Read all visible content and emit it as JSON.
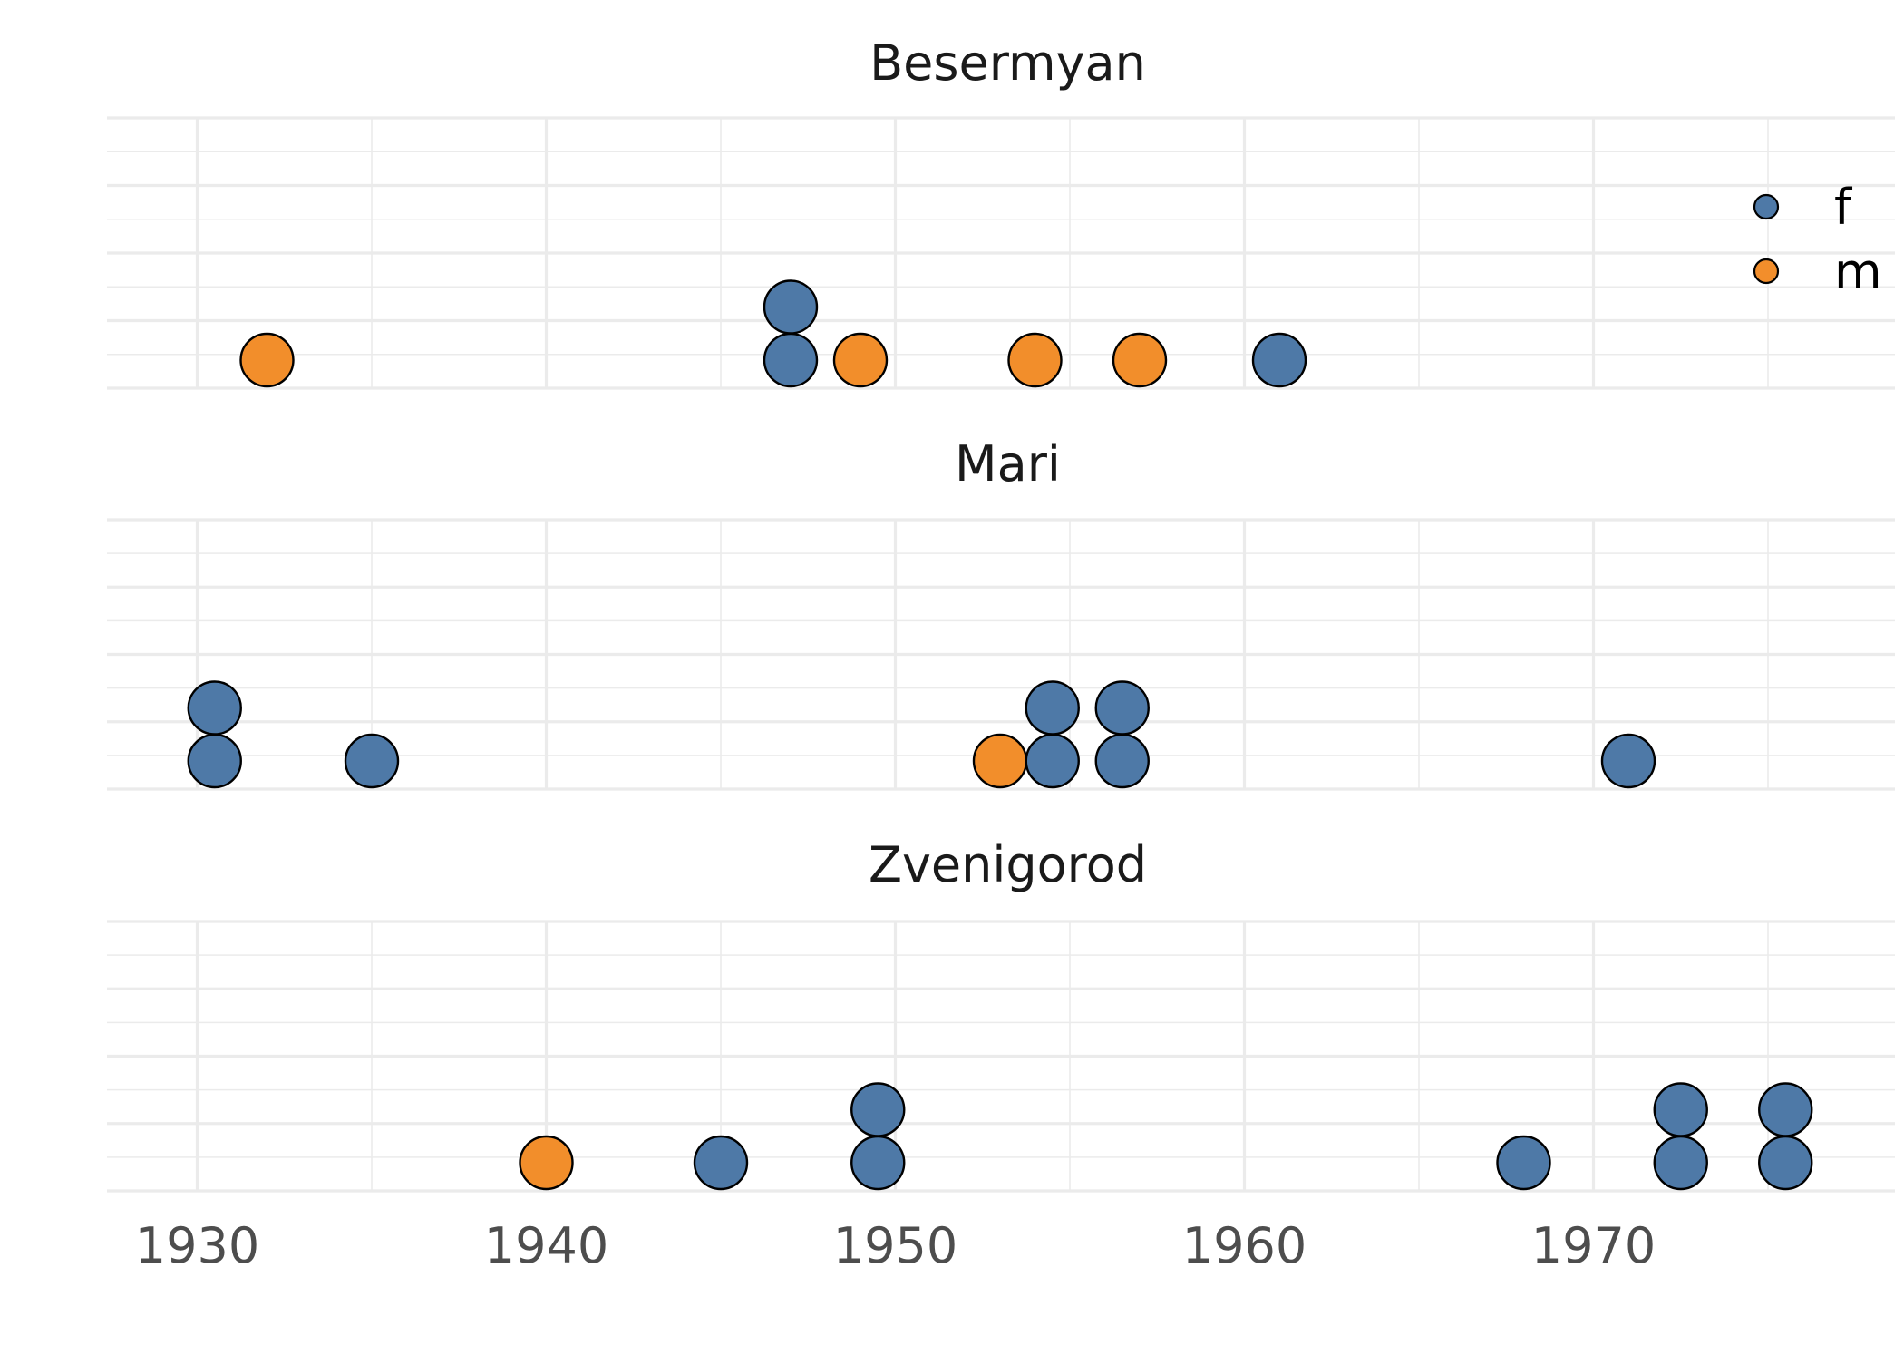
{
  "chart_data": {
    "type": "scatter",
    "subtype": "dotplot",
    "xlabel": "",
    "ylabel": "",
    "xlim": [
      1927.5,
      1978.5
    ],
    "x_ticks": [
      1930,
      1940,
      1950,
      1960,
      1970
    ],
    "x_tick_labels": [
      "1930",
      "1940",
      "1950",
      "1960",
      "1970"
    ],
    "grid": true,
    "legend_position": "right, top",
    "legend": [
      {
        "key": "f",
        "label": "f",
        "color": "#4e79a7"
      },
      {
        "key": "m",
        "label": "m",
        "color": "#f28e2b"
      }
    ],
    "facets": [
      {
        "title": "Besermyan",
        "points": [
          {
            "x": 1932,
            "stack": 0,
            "group": "m"
          },
          {
            "x": 1947,
            "stack": 0,
            "group": "f"
          },
          {
            "x": 1947,
            "stack": 1,
            "group": "f"
          },
          {
            "x": 1949,
            "stack": 0,
            "group": "m"
          },
          {
            "x": 1954,
            "stack": 0,
            "group": "m"
          },
          {
            "x": 1957,
            "stack": 0,
            "group": "m"
          },
          {
            "x": 1961,
            "stack": 0,
            "group": "f"
          }
        ]
      },
      {
        "title": "Mari",
        "points": [
          {
            "x": 1930.5,
            "stack": 0,
            "group": "f"
          },
          {
            "x": 1930.5,
            "stack": 1,
            "group": "f"
          },
          {
            "x": 1935,
            "stack": 0,
            "group": "f"
          },
          {
            "x": 1953,
            "stack": 0,
            "group": "m"
          },
          {
            "x": 1954.5,
            "stack": 0,
            "group": "f"
          },
          {
            "x": 1954.5,
            "stack": 1,
            "group": "f"
          },
          {
            "x": 1956.5,
            "stack": 0,
            "group": "f"
          },
          {
            "x": 1956.5,
            "stack": 1,
            "group": "f"
          },
          {
            "x": 1971,
            "stack": 0,
            "group": "f"
          }
        ]
      },
      {
        "title": "Zvenigorod",
        "points": [
          {
            "x": 1940,
            "stack": 0,
            "group": "m"
          },
          {
            "x": 1945,
            "stack": 0,
            "group": "f"
          },
          {
            "x": 1949.5,
            "stack": 0,
            "group": "f"
          },
          {
            "x": 1949.5,
            "stack": 1,
            "group": "f"
          },
          {
            "x": 1968,
            "stack": 0,
            "group": "f"
          },
          {
            "x": 1972.5,
            "stack": 0,
            "group": "f"
          },
          {
            "x": 1972.5,
            "stack": 1,
            "group": "f"
          },
          {
            "x": 1975.5,
            "stack": 0,
            "group": "f"
          },
          {
            "x": 1975.5,
            "stack": 1,
            "group": "f"
          }
        ]
      }
    ]
  }
}
